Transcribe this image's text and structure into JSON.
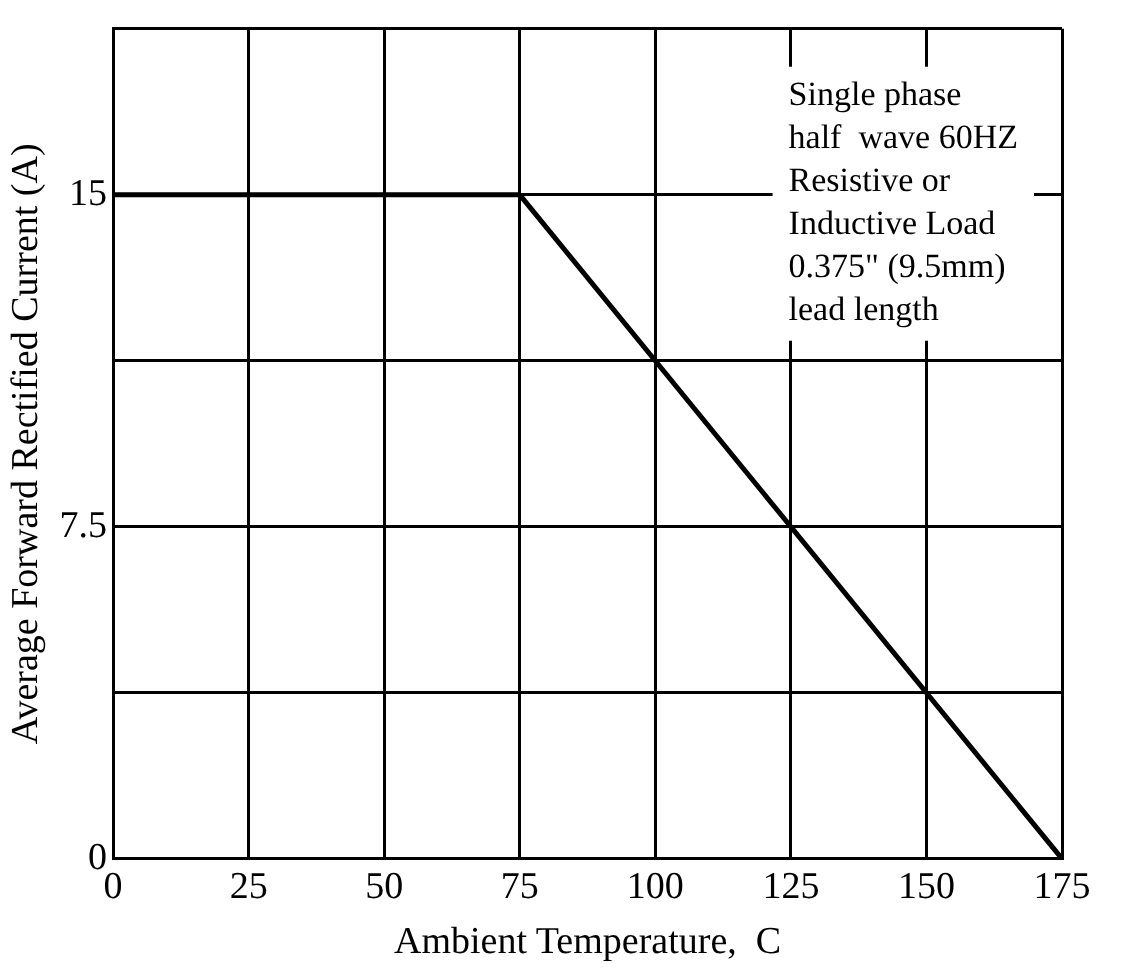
{
  "chart_data": {
    "type": "line",
    "xlabel": "Ambient Temperature,  C",
    "ylabel": "Average Forward Rectified Current (A)",
    "x": [
      0,
      75,
      175
    ],
    "series": [
      {
        "color": "#000000",
        "values": [
          15,
          15,
          0
        ]
      }
    ],
    "xlim": [
      0,
      175
    ],
    "xticks": [
      0,
      25,
      50,
      75,
      100,
      125,
      150,
      175
    ],
    "ylim": [
      0,
      18.75
    ],
    "yticks": [
      0,
      {
        "value": 3.75,
        "label": null
      },
      7.5,
      {
        "value": 11.25,
        "label": null
      },
      15,
      {
        "value": 18.75,
        "label": null
      }
    ],
    "grid": true,
    "legend": false,
    "marker": "none",
    "line_style": "solid",
    "annotations": [
      "Single phase\nhalf  wave 60HZ\nResistive or\nInductive Load\n0.375\" (9.5mm)\nlead length"
    ]
  }
}
